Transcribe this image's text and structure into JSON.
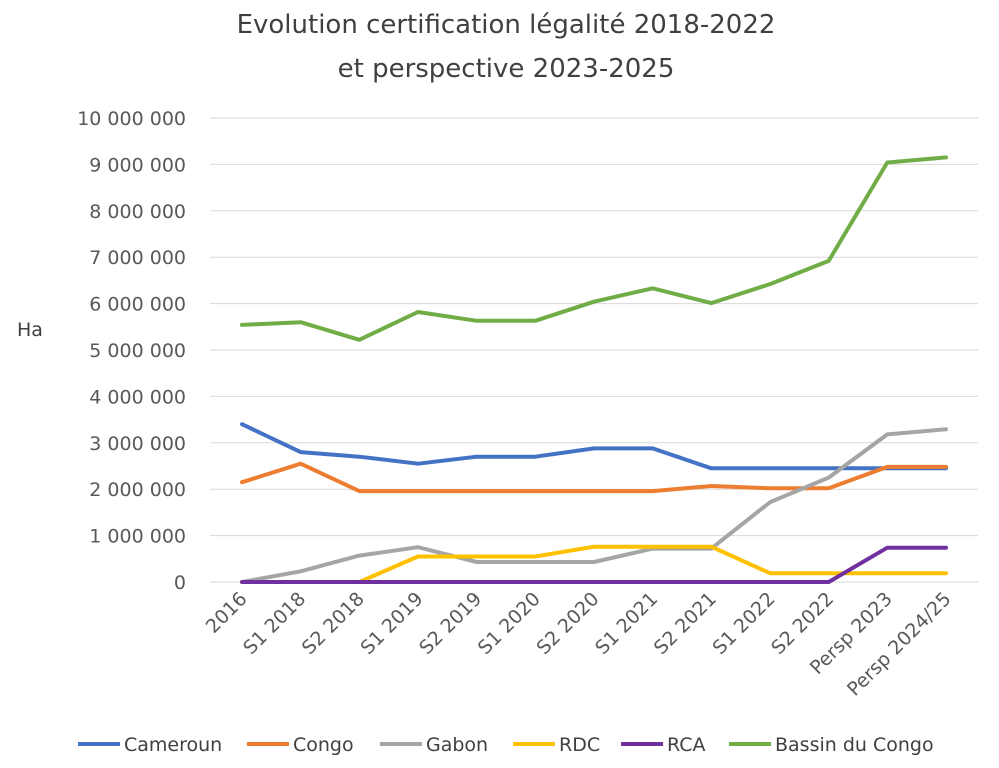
{
  "chart_data": {
    "type": "line",
    "title_lines": [
      "Evolution certification légalité 2018-2022",
      "et perspective 2023-2025"
    ],
    "xlabel": "",
    "ylabel": "Ha",
    "ylim": [
      0,
      10000000
    ],
    "y_ticks": [
      "0",
      "1 000 000",
      "2 000 000",
      "3 000 000",
      "4 000 000",
      "5 000 000",
      "6 000 000",
      "7 000 000",
      "8 000 000",
      "9 000 000",
      "10 000 000"
    ],
    "grid": true,
    "legend_position": "bottom",
    "categories": [
      "2016",
      "S1 2018",
      "S2 2018",
      "S1 2019",
      "S2 2019",
      "S1 2020",
      "S2 2020",
      "S1 2021",
      "S2 2021",
      "S1 2022",
      "S2 2022",
      "Persp 2023",
      "Persp 2024/25"
    ],
    "series": [
      {
        "name": "Cameroun",
        "color": "#4472c4",
        "values": [
          3400000,
          2800000,
          2700000,
          2550000,
          2700000,
          2700000,
          2880000,
          2880000,
          2450000,
          2450000,
          2450000,
          2450000,
          2450000
        ]
      },
      {
        "name": "Congo",
        "color": "#ed7d31",
        "values": [
          2150000,
          2550000,
          1960000,
          1960000,
          1960000,
          1960000,
          1960000,
          1960000,
          2070000,
          2020000,
          2020000,
          2480000,
          2480000
        ]
      },
      {
        "name": "Gabon",
        "color": "#a5a5a5",
        "values": [
          0,
          230000,
          570000,
          750000,
          430000,
          430000,
          430000,
          720000,
          720000,
          1720000,
          2250000,
          3180000,
          3290000
        ]
      },
      {
        "name": "RDC",
        "color": "#ffc000",
        "values": [
          0,
          0,
          0,
          550000,
          550000,
          550000,
          760000,
          760000,
          760000,
          190000,
          190000,
          190000,
          190000
        ]
      },
      {
        "name": "RCA",
        "color": "#7030a0",
        "values": [
          0,
          0,
          0,
          0,
          0,
          0,
          0,
          0,
          0,
          0,
          0,
          740000,
          740000
        ]
      },
      {
        "name": "Bassin du Congo",
        "color": "#70ad47",
        "values": [
          5540000,
          5600000,
          5220000,
          5820000,
          5630000,
          5630000,
          6040000,
          6330000,
          6010000,
          6420000,
          6920000,
          9040000,
          9150000
        ]
      }
    ]
  }
}
